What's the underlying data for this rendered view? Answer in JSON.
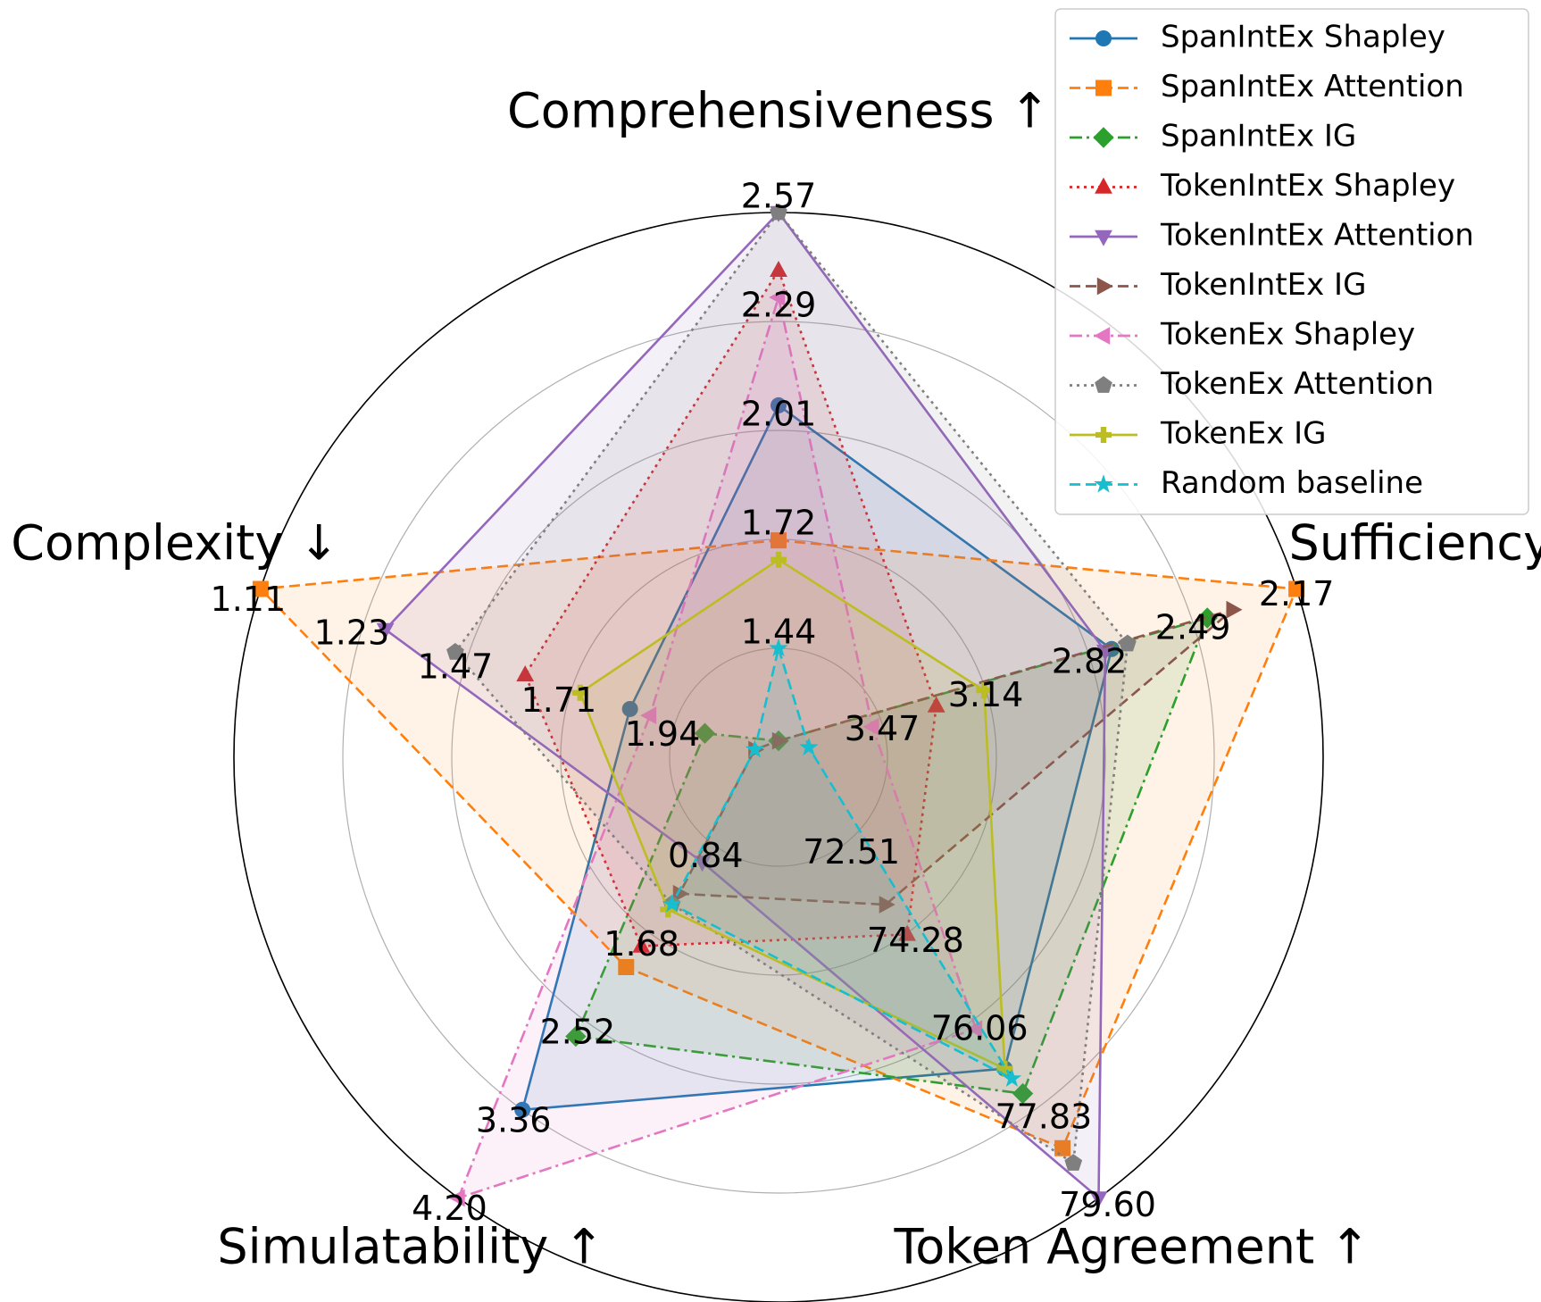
{
  "chart_data": {
    "type": "radar",
    "axes": [
      {
        "label": "Comprehensiveness ↑",
        "ticks": [
          "1.44",
          "1.72",
          "2.01",
          "2.29",
          "2.57"
        ]
      },
      {
        "label": "Sufficiency ↓",
        "ticks": [
          "3.47",
          "3.14",
          "2.82",
          "2.49",
          "2.17"
        ]
      },
      {
        "label": "Token Agreement ↑",
        "ticks": [
          "72.51",
          "74.28",
          "76.06",
          "77.83",
          "79.60"
        ]
      },
      {
        "label": "Simulatability ↑",
        "ticks": [
          "0.84",
          "1.68",
          "2.52",
          "3.36",
          "4.20"
        ]
      },
      {
        "label": "Complexity ↓",
        "ticks": [
          "1.94",
          "1.71",
          "1.47",
          "1.23",
          "1.11"
        ]
      }
    ],
    "series": [
      {
        "name": "SpanIntEx Shapley",
        "color": "#1f77b4",
        "dash": "",
        "marker": "circle",
        "values": [
          2.07,
          2.75,
          77.0,
          3.36,
          1.85
        ]
      },
      {
        "name": "SpanIntEx Attention",
        "color": "#ff7f0e",
        "dash": "12,6",
        "marker": "square",
        "values": [
          1.72,
          2.17,
          78.6,
          2.0,
          1.11
        ]
      },
      {
        "name": "SpanIntEx IG",
        "color": "#2ca02c",
        "dash": "14,5,3,5",
        "marker": "diamond",
        "values": [
          1.2,
          2.45,
          77.5,
          2.66,
          2.0
        ]
      },
      {
        "name": "TokenIntEx Shapley",
        "color": "#d62728",
        "dash": "3,5",
        "marker": "triangle-up",
        "values": [
          2.42,
          3.3,
          74.3,
          1.8,
          1.64
        ]
      },
      {
        "name": "TokenIntEx Attention",
        "color": "#9467bd",
        "dash": "",
        "marker": "triangle-down",
        "values": [
          2.57,
          2.77,
          79.6,
          1.0,
          1.36
        ]
      },
      {
        "name": "TokenIntEx IG",
        "color": "#8c564b",
        "dash": "12,6",
        "marker": "triangle-right",
        "values": [
          1.2,
          2.37,
          73.7,
          1.3,
          2.1
        ]
      },
      {
        "name": "TokenEx Shapley",
        "color": "#e377c2",
        "dash": "14,5,3,5",
        "marker": "triangle-left",
        "values": [
          2.35,
          3.5,
          76.2,
          4.2,
          1.89
        ]
      },
      {
        "name": "TokenEx Attention",
        "color": "#7f7f7f",
        "dash": "3,5",
        "marker": "pentagon",
        "values": [
          2.57,
          2.7,
          78.9,
          1.4,
          1.5
        ]
      },
      {
        "name": "TokenEx IG",
        "color": "#bcbd22",
        "dash": "",
        "marker": "plus",
        "values": [
          1.67,
          3.15,
          77.0,
          1.45,
          1.75
        ]
      },
      {
        "name": "Random baseline",
        "color": "#17becf",
        "dash": "12,6",
        "marker": "star",
        "values": [
          1.44,
          3.7,
          77.2,
          1.4,
          2.1
        ]
      }
    ],
    "legend_position": "top-right",
    "grid": true
  }
}
